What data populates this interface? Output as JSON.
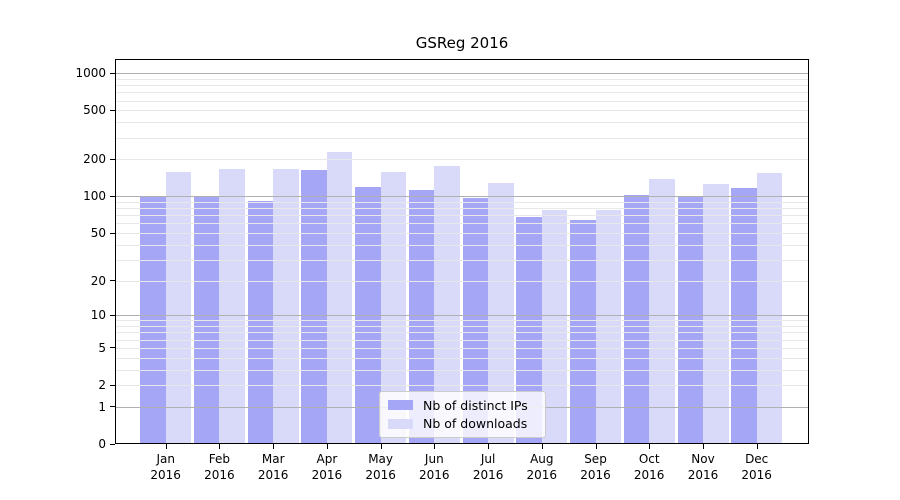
{
  "chart_data": {
    "type": "bar",
    "title": "GSReg 2016",
    "categories": [
      "Jan",
      "Feb",
      "Mar",
      "Apr",
      "May",
      "Jun",
      "Jul",
      "Aug",
      "Sep",
      "Oct",
      "Nov",
      "Dec"
    ],
    "x_tick_year": "2016",
    "series": [
      {
        "name": "Nb of distinct IPs",
        "color": "#a6a6f6",
        "values": [
          100,
          98,
          92,
          164,
          120,
          112,
          97,
          68,
          64,
          102,
          98,
          117
        ]
      },
      {
        "name": "Nb of downloads",
        "color": "#d9d9fa",
        "values": [
          158,
          167,
          167,
          228,
          159,
          178,
          128,
          78,
          77,
          138,
          126,
          155
        ]
      }
    ],
    "y_scale": "log1p",
    "y_range": [
      0,
      1300
    ],
    "y_ticks": [
      1000,
      500,
      200,
      100,
      50,
      20,
      10,
      5,
      2,
      1,
      0
    ],
    "y_major_gridlines": [
      1,
      10,
      100,
      1000
    ],
    "y_minor_gridlines": [
      2,
      3,
      4,
      5,
      6,
      7,
      8,
      9,
      20,
      30,
      40,
      50,
      60,
      70,
      80,
      90,
      200,
      300,
      400,
      500,
      600,
      700,
      800,
      900
    ],
    "grid": true,
    "grid_above_bars": true,
    "legend_position": "lower center"
  },
  "colors": {
    "background": "#ffffff",
    "spine": "#000000",
    "grid_major": "#b0b0b0",
    "grid_minor": "#e8e8e8",
    "text": "#000000",
    "legend_border": "#cccccc"
  }
}
